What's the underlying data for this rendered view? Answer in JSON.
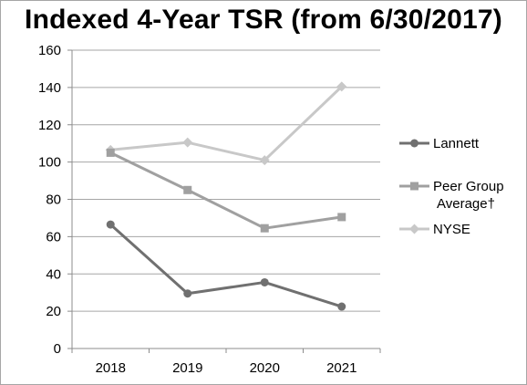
{
  "chart_data": {
    "type": "line",
    "title": "Indexed 4-Year TSR (from 6/30/2017)",
    "xlabel": "",
    "ylabel": "",
    "categories": [
      "2018",
      "2019",
      "2020",
      "2021"
    ],
    "ylim": [
      0,
      160
    ],
    "yticks": [
      0,
      20,
      40,
      60,
      80,
      100,
      120,
      140,
      160
    ],
    "grid": "horizontal",
    "legend_position": "right",
    "series": [
      {
        "name": "Lannett",
        "values": [
          66.5,
          29.5,
          35.5,
          22.5
        ],
        "color": "#707070",
        "marker": "circle"
      },
      {
        "name": "Peer Group Average†",
        "legend_lines": [
          "Peer Group",
          "Average†"
        ],
        "values": [
          105,
          85,
          64.5,
          70.5
        ],
        "color": "#a0a0a0",
        "marker": "square"
      },
      {
        "name": "NYSE",
        "values": [
          106.5,
          110.5,
          101,
          140.5
        ],
        "color": "#c8c8c8",
        "marker": "diamond"
      }
    ]
  }
}
